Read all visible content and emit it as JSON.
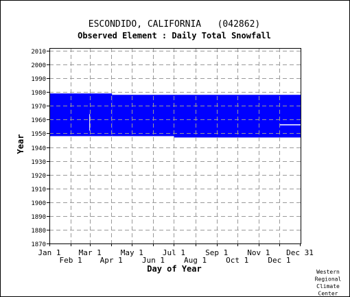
{
  "chart_data": {
    "type": "heatmap",
    "title": "ESCONDIDO, CALIFORNIA   (042862)",
    "subtitle": "Observed Element : Daily Total Snowfall",
    "xlabel": "Day of Year",
    "ylabel": "Year",
    "x_range": [
      1,
      366
    ],
    "y_range": [
      1870,
      2012
    ],
    "x_ticks_top_row": [
      {
        "label": "Jan 1",
        "day": 1
      },
      {
        "label": "Mar 1",
        "day": 60
      },
      {
        "label": "May 1",
        "day": 121
      },
      {
        "label": "Jul 1",
        "day": 182
      },
      {
        "label": "Sep 1",
        "day": 244
      },
      {
        "label": "Nov 1",
        "day": 305
      },
      {
        "label": "Dec 31",
        "day": 365
      }
    ],
    "x_ticks_bottom_row": [
      {
        "label": "Feb 1",
        "day": 32
      },
      {
        "label": "Apr 1",
        "day": 91
      },
      {
        "label": "Jun 1",
        "day": 152
      },
      {
        "label": "Aug 1",
        "day": 213
      },
      {
        "label": "Oct 1",
        "day": 274
      },
      {
        "label": "Dec 1",
        "day": 335
      }
    ],
    "y_ticks": [
      2010,
      2000,
      1990,
      1980,
      1970,
      1960,
      1950,
      1940,
      1930,
      1920,
      1910,
      1900,
      1890,
      1880,
      1870
    ],
    "grid": true,
    "fill_color": "#0000ff",
    "blocks": [
      {
        "day_start": 1,
        "day_end": 92,
        "year_start": 1948,
        "year_end": 1979
      },
      {
        "day_start": 92,
        "day_end": 182,
        "year_start": 1948,
        "year_end": 1978
      },
      {
        "day_start": 182,
        "day_end": 366,
        "year_start": 1947,
        "year_end": 1978
      }
    ],
    "gaps": [
      {
        "day_start": 336,
        "day_end": 366,
        "year_start": 1956,
        "year_end": 1956.6
      },
      {
        "day_start": 59,
        "day_end": 60,
        "year_start": 1952,
        "year_end": 1964
      }
    ]
  },
  "credit": [
    "Western",
    "Regional",
    "Climate",
    "Center"
  ]
}
